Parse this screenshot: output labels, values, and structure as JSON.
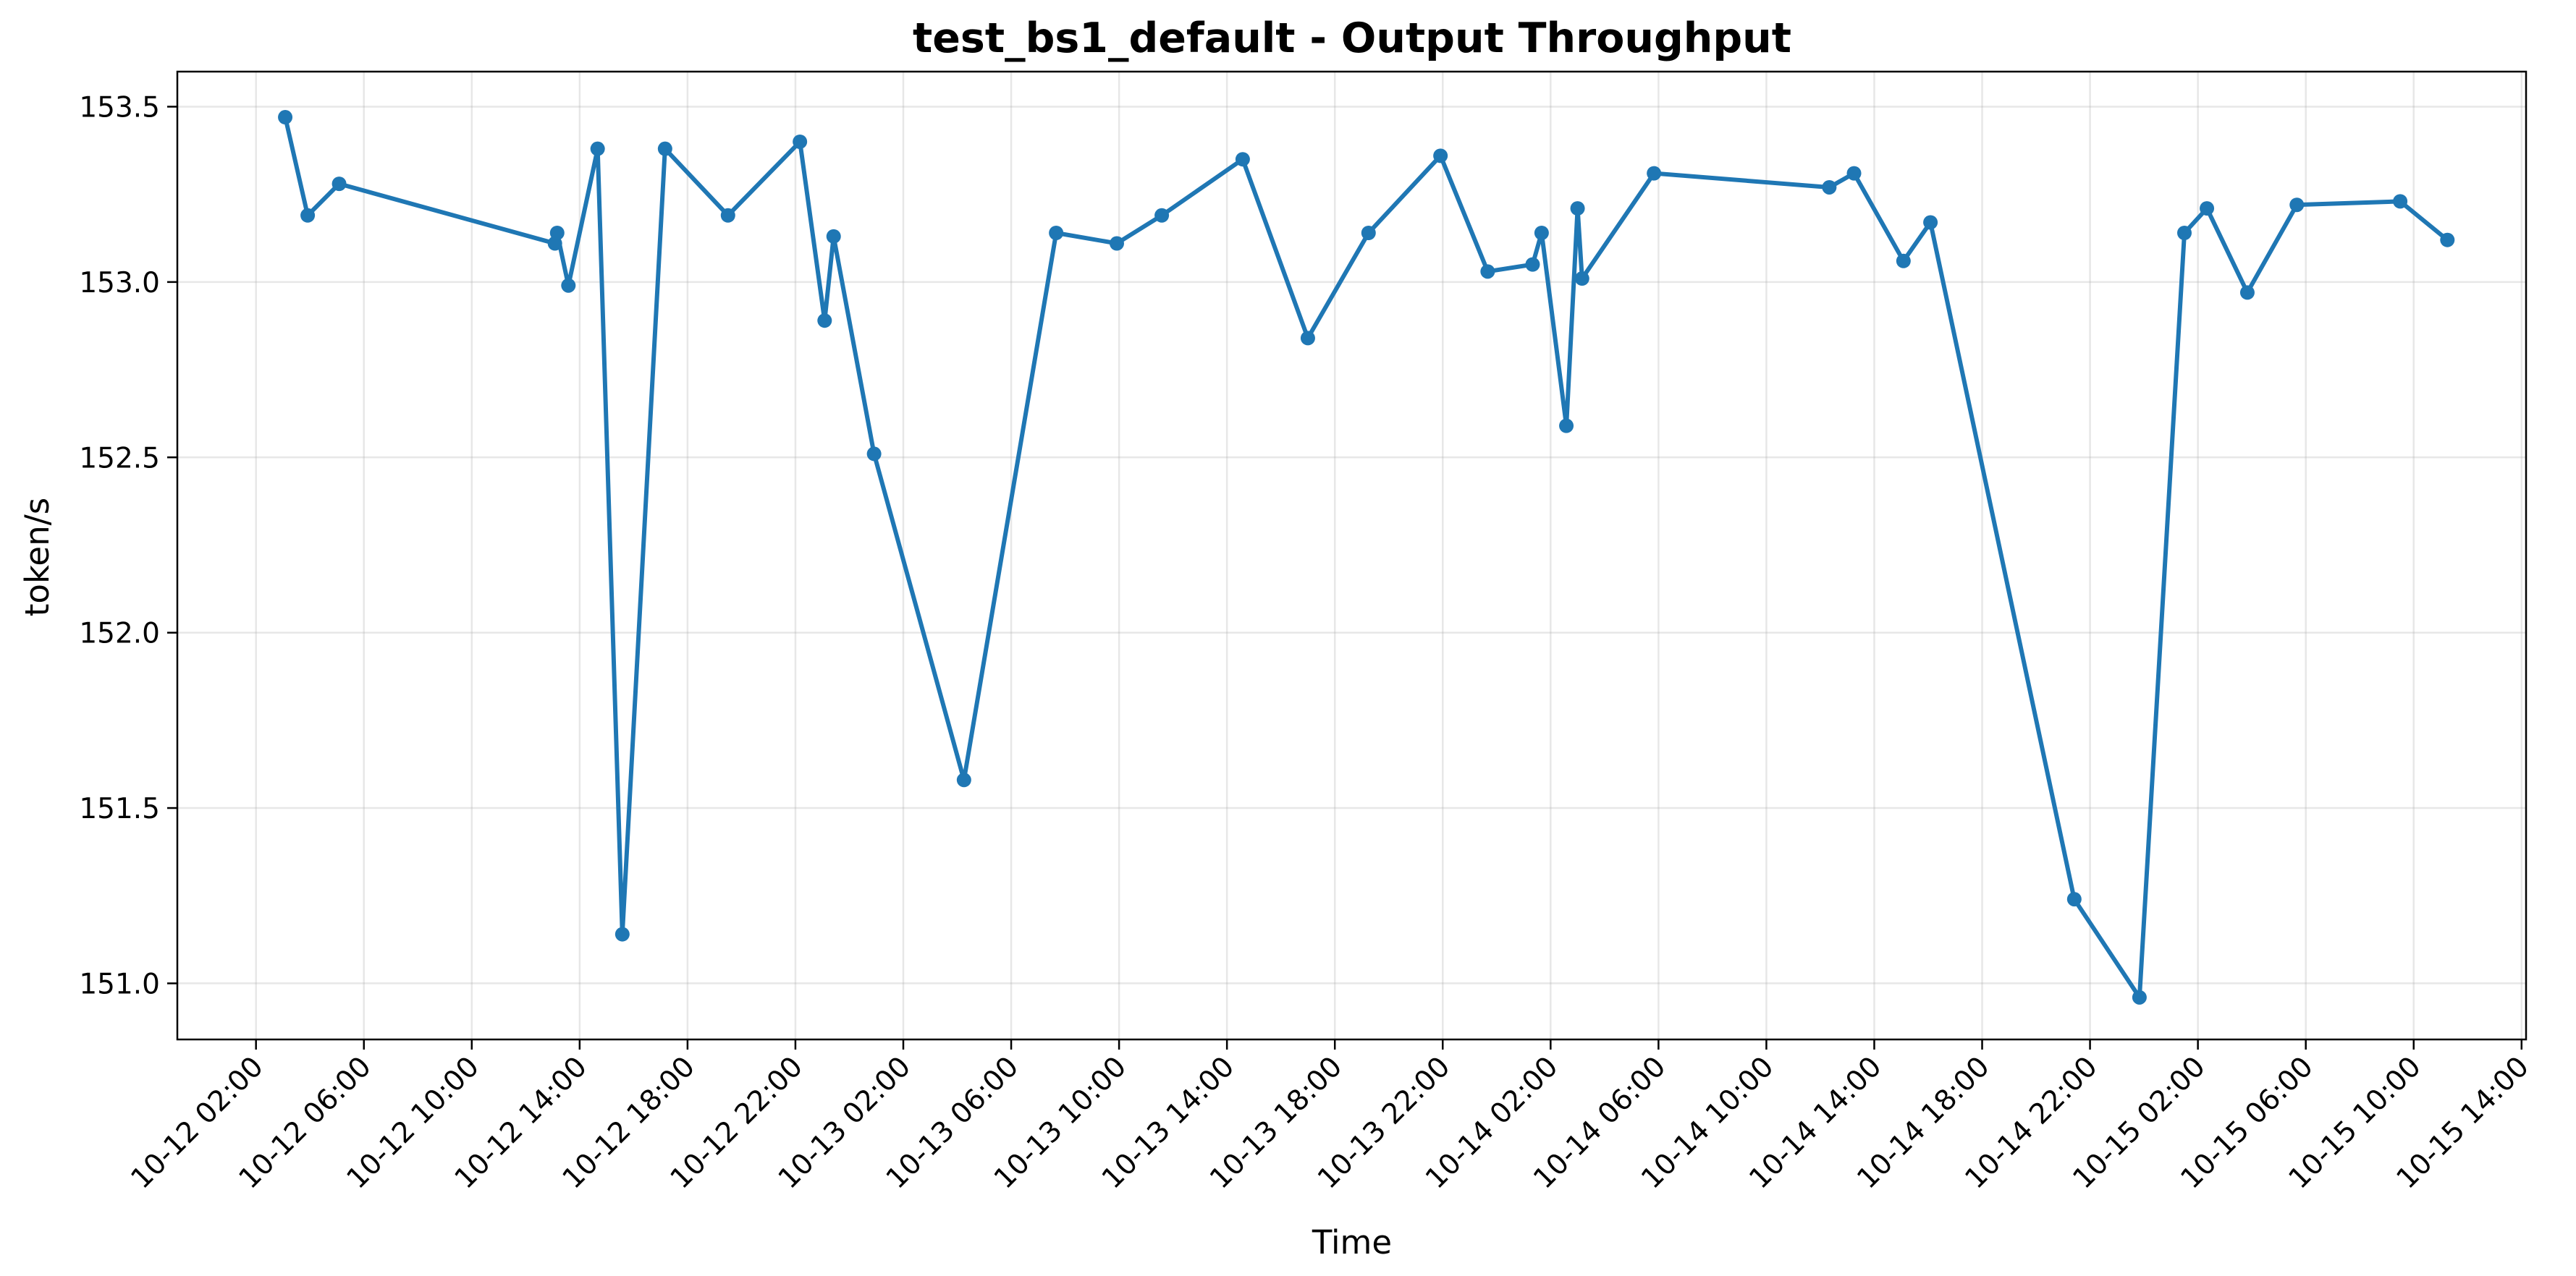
{
  "chart_data": {
    "type": "line",
    "title": "test_bs1_default - Output Throughput",
    "xlabel": "Time",
    "ylabel": "token/s",
    "x_axis_type": "datetime",
    "xlim": [
      "2025-10-11 23:05",
      "2025-10-15 14:10"
    ],
    "ylim": [
      150.84,
      153.6
    ],
    "grid": true,
    "legend": "none",
    "x_ticks": [
      {
        "value": "2025-10-12 02:00",
        "label": "10-12 02:00"
      },
      {
        "value": "2025-10-12 06:00",
        "label": "10-12 06:00"
      },
      {
        "value": "2025-10-12 10:00",
        "label": "10-12 10:00"
      },
      {
        "value": "2025-10-12 14:00",
        "label": "10-12 14:00"
      },
      {
        "value": "2025-10-12 18:00",
        "label": "10-12 18:00"
      },
      {
        "value": "2025-10-12 22:00",
        "label": "10-12 22:00"
      },
      {
        "value": "2025-10-13 02:00",
        "label": "10-13 02:00"
      },
      {
        "value": "2025-10-13 06:00",
        "label": "10-13 06:00"
      },
      {
        "value": "2025-10-13 10:00",
        "label": "10-13 10:00"
      },
      {
        "value": "2025-10-13 14:00",
        "label": "10-13 14:00"
      },
      {
        "value": "2025-10-13 18:00",
        "label": "10-13 18:00"
      },
      {
        "value": "2025-10-13 22:00",
        "label": "10-13 22:00"
      },
      {
        "value": "2025-10-14 02:00",
        "label": "10-14 02:00"
      },
      {
        "value": "2025-10-14 06:00",
        "label": "10-14 06:00"
      },
      {
        "value": "2025-10-14 10:00",
        "label": "10-14 10:00"
      },
      {
        "value": "2025-10-14 14:00",
        "label": "10-14 14:00"
      },
      {
        "value": "2025-10-14 18:00",
        "label": "10-14 18:00"
      },
      {
        "value": "2025-10-14 22:00",
        "label": "10-14 22:00"
      },
      {
        "value": "2025-10-15 02:00",
        "label": "10-15 02:00"
      },
      {
        "value": "2025-10-15 06:00",
        "label": "10-15 06:00"
      },
      {
        "value": "2025-10-15 10:00",
        "label": "10-15 10:00"
      },
      {
        "value": "2025-10-15 14:00",
        "label": "10-15 14:00"
      }
    ],
    "y_ticks": [
      {
        "value": 151.0,
        "label": "151.0"
      },
      {
        "value": 151.5,
        "label": "151.5"
      },
      {
        "value": 152.0,
        "label": "152.0"
      },
      {
        "value": 152.5,
        "label": "152.5"
      },
      {
        "value": 153.0,
        "label": "153.0"
      },
      {
        "value": 153.5,
        "label": "153.5"
      }
    ],
    "series": [
      {
        "color": "#1f77b4",
        "marker": "circle",
        "points": [
          {
            "x": "2025-10-12 03:05",
            "y": 153.47
          },
          {
            "x": "2025-10-12 03:55",
            "y": 153.19
          },
          {
            "x": "2025-10-12 05:05",
            "y": 153.28
          },
          {
            "x": "2025-10-12 13:05",
            "y": 153.11
          },
          {
            "x": "2025-10-12 13:10",
            "y": 153.14
          },
          {
            "x": "2025-10-12 13:35",
            "y": 152.99
          },
          {
            "x": "2025-10-12 14:40",
            "y": 153.38
          },
          {
            "x": "2025-10-12 15:35",
            "y": 151.14
          },
          {
            "x": "2025-10-12 17:10",
            "y": 153.38
          },
          {
            "x": "2025-10-12 19:30",
            "y": 153.19
          },
          {
            "x": "2025-10-12 22:10",
            "y": 153.4
          },
          {
            "x": "2025-10-12 23:05",
            "y": 152.89
          },
          {
            "x": "2025-10-12 23:25",
            "y": 153.13
          },
          {
            "x": "2025-10-13 00:55",
            "y": 152.51
          },
          {
            "x": "2025-10-13 04:15",
            "y": 151.58
          },
          {
            "x": "2025-10-13 07:40",
            "y": 153.14
          },
          {
            "x": "2025-10-13 09:55",
            "y": 153.11
          },
          {
            "x": "2025-10-13 11:35",
            "y": 153.19
          },
          {
            "x": "2025-10-13 14:35",
            "y": 153.35
          },
          {
            "x": "2025-10-13 17:00",
            "y": 152.84
          },
          {
            "x": "2025-10-13 19:15",
            "y": 153.14
          },
          {
            "x": "2025-10-13 21:55",
            "y": 153.36
          },
          {
            "x": "2025-10-13 23:40",
            "y": 153.03
          },
          {
            "x": "2025-10-14 01:20",
            "y": 153.05
          },
          {
            "x": "2025-10-14 01:40",
            "y": 153.14
          },
          {
            "x": "2025-10-14 02:35",
            "y": 152.59
          },
          {
            "x": "2025-10-14 03:00",
            "y": 153.21
          },
          {
            "x": "2025-10-14 03:10",
            "y": 153.01
          },
          {
            "x": "2025-10-14 05:50",
            "y": 153.31
          },
          {
            "x": "2025-10-14 12:20",
            "y": 153.27
          },
          {
            "x": "2025-10-14 13:15",
            "y": 153.31
          },
          {
            "x": "2025-10-14 15:05",
            "y": 153.06
          },
          {
            "x": "2025-10-14 16:05",
            "y": 153.17
          },
          {
            "x": "2025-10-14 21:25",
            "y": 151.24
          },
          {
            "x": "2025-10-14 23:50",
            "y": 150.96
          },
          {
            "x": "2025-10-15 01:30",
            "y": 153.14
          },
          {
            "x": "2025-10-15 02:20",
            "y": 153.21
          },
          {
            "x": "2025-10-15 03:50",
            "y": 152.97
          },
          {
            "x": "2025-10-15 05:40",
            "y": 153.22
          },
          {
            "x": "2025-10-15 09:30",
            "y": 153.23
          },
          {
            "x": "2025-10-15 11:15",
            "y": 153.12
          }
        ]
      }
    ]
  }
}
